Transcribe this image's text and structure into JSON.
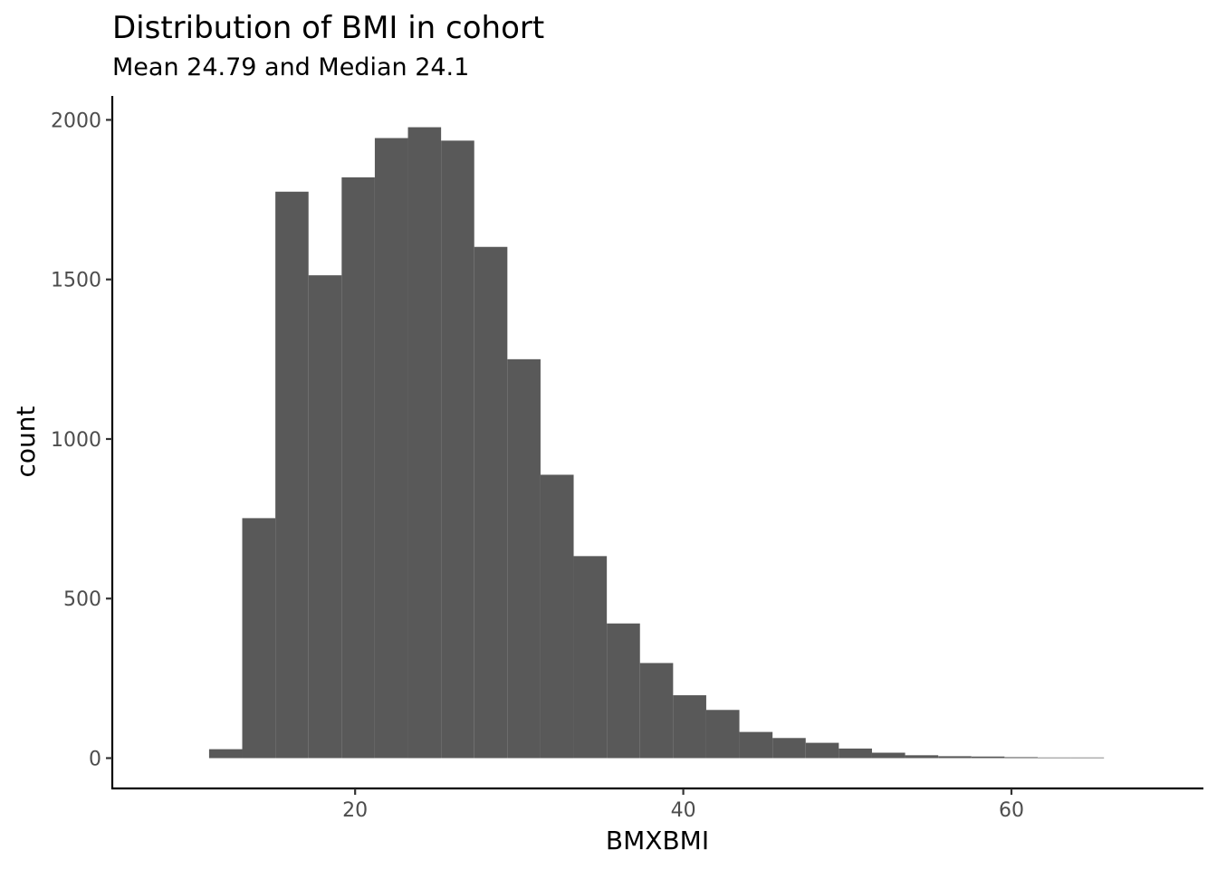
{
  "chart_data": {
    "type": "bar",
    "title": "Distribution of BMI in cohort",
    "subtitle": "Mean 24.79 and Median 24.1",
    "xlabel": "BMXBMI",
    "ylabel": "count",
    "bin_width": 2.02,
    "bin_starts": [
      11.1,
      13.12,
      15.14,
      17.16,
      19.18,
      21.2,
      23.22,
      25.24,
      27.26,
      29.28,
      31.3,
      33.32,
      35.34,
      37.36,
      39.38,
      41.4,
      43.42,
      45.44,
      47.46,
      49.48,
      51.5,
      53.52,
      55.54,
      57.56,
      59.58,
      61.6,
      63.62
    ],
    "values": [
      28,
      752,
      1775,
      1513,
      1820,
      1943,
      1977,
      1935,
      1602,
      1250,
      888,
      633,
      422,
      298,
      197,
      151,
      82,
      63,
      48,
      30,
      17,
      9,
      6,
      5,
      3,
      2,
      2
    ],
    "xlim": [
      5.2,
      71.7
    ],
    "ylim": [
      -95,
      2075
    ],
    "x_ticks": [
      20,
      40,
      60
    ],
    "x_tick_labels": [
      "20",
      "40",
      "60"
    ],
    "y_ticks": [
      0,
      500,
      1000,
      1500,
      2000
    ],
    "y_tick_labels": [
      "0",
      "500",
      "1000",
      "1500",
      "2000"
    ],
    "grid": false,
    "bar_color": "#595959",
    "background": "#ffffff"
  }
}
